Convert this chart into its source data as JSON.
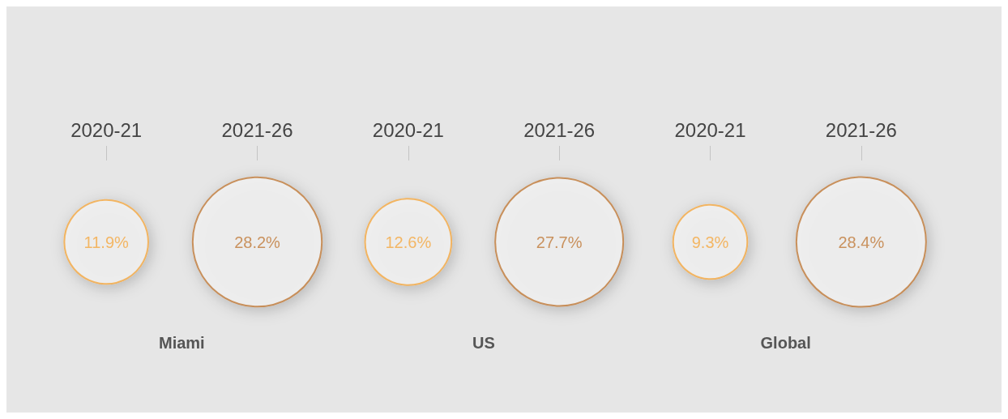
{
  "chart_data": {
    "type": "other",
    "categories": [
      "2020-21",
      "2021-26"
    ],
    "series": [
      {
        "name": "Miami",
        "values": [
          11.9,
          28.2
        ],
        "value_labels": [
          "11.9%",
          "28.2%"
        ],
        "colors": [
          "#f5a942",
          "#c07a3a"
        ]
      },
      {
        "name": "US",
        "values": [
          12.6,
          27.7
        ],
        "value_labels": [
          "12.6%",
          "27.7%"
        ],
        "colors": [
          "#f5a942",
          "#c07a3a"
        ]
      },
      {
        "name": "Global",
        "values": [
          9.3,
          28.4
        ],
        "value_labels": [
          "9.3%",
          "28.4%"
        ],
        "colors": [
          "#f5a942",
          "#c07a3a"
        ]
      }
    ]
  }
}
